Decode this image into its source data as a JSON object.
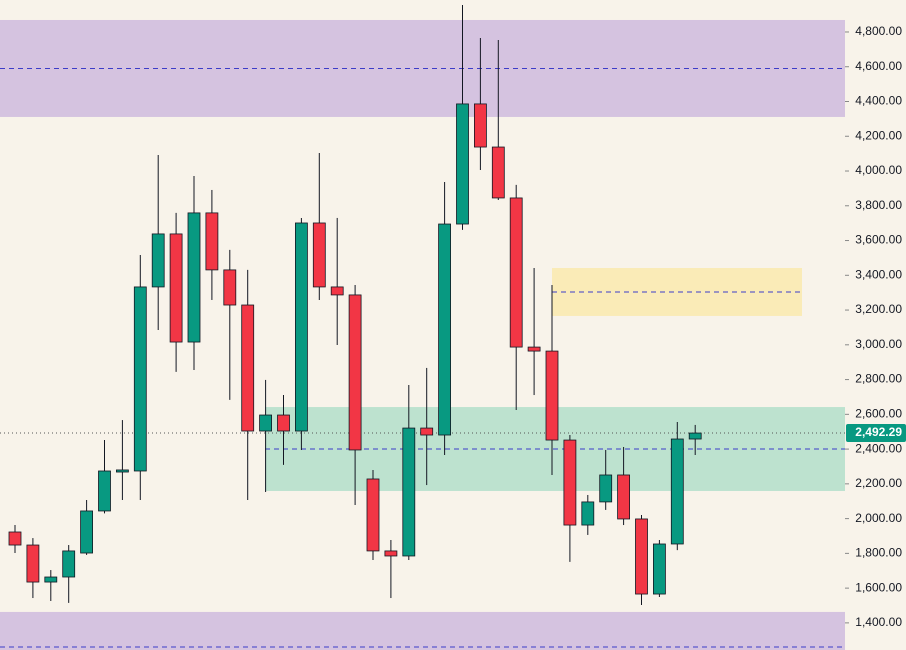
{
  "chart_data": {
    "type": "candlestick",
    "up_color": "#089981",
    "down_color": "#f23645",
    "ylim": [
      1244,
      4984
    ],
    "yticks": [
      {
        "value": 1400,
        "label": "1,400.00"
      },
      {
        "value": 1600,
        "label": "1,600.00"
      },
      {
        "value": 1800,
        "label": "1,800.00"
      },
      {
        "value": 2000,
        "label": "2,000.00"
      },
      {
        "value": 2200,
        "label": "2,200.00"
      },
      {
        "value": 2400,
        "label": "2,400.00"
      },
      {
        "value": 2600,
        "label": "2,600.00"
      },
      {
        "value": 2800,
        "label": "2,800.00"
      },
      {
        "value": 3000,
        "label": "3,000.00"
      },
      {
        "value": 3200,
        "label": "3,200.00"
      },
      {
        "value": 3400,
        "label": "3,400.00"
      },
      {
        "value": 3600,
        "label": "3,600.00"
      },
      {
        "value": 3800,
        "label": "3,800.00"
      },
      {
        "value": 4000,
        "label": "4,000.00"
      },
      {
        "value": 4200,
        "label": "4,200.00"
      },
      {
        "value": 4400,
        "label": "4,400.00"
      },
      {
        "value": 4600,
        "label": "4,600.00"
      },
      {
        "value": 4800,
        "label": "4,800.00"
      }
    ],
    "open": [
      1923,
      1848,
      1635,
      1664,
      1802,
      2044,
      2268,
      2274,
      3333,
      3638,
      3016,
      3759,
      3431,
      3229,
      2504,
      2596,
      2504,
      3701,
      3333,
      3287,
      2228,
      1814,
      1785,
      2521,
      2481,
      3695,
      4386,
      4138,
      3845,
      2987,
      2964,
      2452,
      1963,
      2096,
      2251,
      1998,
      1566,
      1854,
      2458
    ],
    "high": [
      1963,
      1888,
      1704,
      1848,
      2107,
      2452,
      2567,
      3517,
      4092,
      3759,
      3971,
      3891,
      3546,
      3431,
      2798,
      2711,
      3730,
      4104,
      3730,
      3344,
      2280,
      1877,
      2769,
      2867,
      3937,
      4955,
      4765,
      4754,
      3920,
      3442,
      3344,
      2481,
      2136,
      2395,
      2412,
      2021,
      1877,
      2556,
      2539
    ],
    "low": [
      1802,
      1543,
      1526,
      1515,
      1791,
      2030,
      2107,
      2107,
      3085,
      2844,
      2855,
      3258,
      2683,
      2107,
      2153,
      2309,
      2395,
      3258,
      2999,
      2078,
      1762,
      1543,
      1762,
      2193,
      2366,
      3661,
      4006,
      3833,
      2625,
      2711,
      2251,
      1751,
      1906,
      2050,
      1963,
      1503,
      1549,
      1819,
      2366
    ],
    "close": [
      1848,
      1635,
      1664,
      1814,
      2044,
      2274,
      2280,
      3333,
      3638,
      3016,
      3759,
      3431,
      3229,
      2504,
      2596,
      2504,
      3701,
      3333,
      3287,
      2395,
      1814,
      1785,
      2521,
      2481,
      3695,
      4386,
      4138,
      3845,
      2987,
      2964,
      2452,
      1963,
      2096,
      2251,
      1998,
      1566,
      1854,
      2458,
      2492.29
    ],
    "zones": [
      {
        "range": [
          4311,
          4869
        ],
        "color": "#c9b3dc"
      },
      {
        "range": [
          3166,
          3442
        ],
        "color": "#fbe8a6"
      },
      {
        "range": [
          2159,
          2642
        ],
        "color": "#a9dcc6"
      },
      {
        "range": [
          1059,
          1463
        ],
        "color": "#c9b3dc"
      }
    ],
    "last_price": {
      "value": 2492.29,
      "label": "2,492.29"
    }
  }
}
